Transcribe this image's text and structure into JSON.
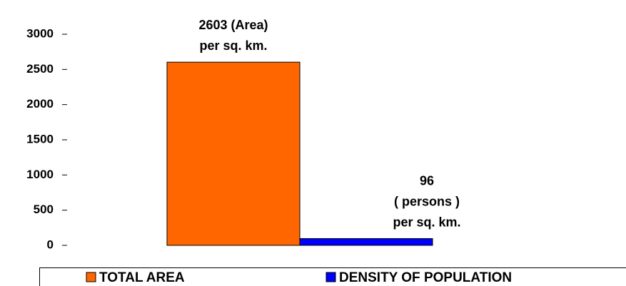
{
  "chart_data": {
    "type": "bar",
    "categories": [
      null
    ],
    "series": [
      {
        "name": "TOTAL AREA",
        "color": "#ff6600",
        "values": [
          2603
        ],
        "value_labels": [
          [
            "2603 (Area)",
            "per sq. km."
          ]
        ]
      },
      {
        "name": "DENSITY OF POPULATION",
        "color": "#0000ff",
        "values": [
          96
        ],
        "value_labels": [
          [
            "96",
            "( persons )",
            "per sq. km."
          ]
        ]
      }
    ],
    "ylim": [
      0,
      3000
    ],
    "yticks": [
      0,
      500,
      1000,
      1500,
      2000,
      2500,
      3000
    ],
    "legend": "bottom"
  }
}
